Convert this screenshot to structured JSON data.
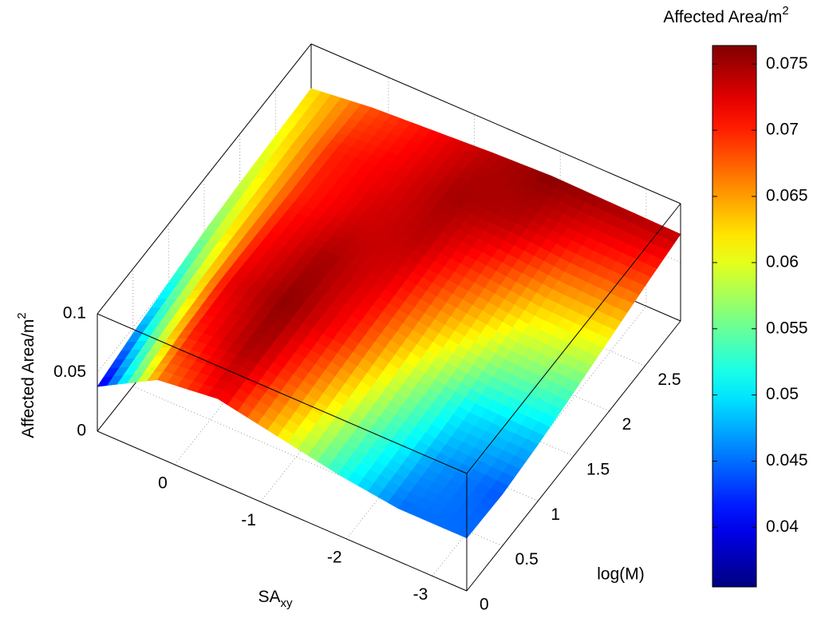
{
  "chart_data": {
    "type": "surface",
    "xlabel": {
      "base": "SA",
      "sub": "xy"
    },
    "ylabel": "log(M)",
    "zlabel": {
      "base": "Affected Area/m",
      "sup": "2"
    },
    "colorbar_title": {
      "base": "Affected Area/m",
      "sup": "2"
    },
    "x": [
      0.9,
      0.2,
      -0.5,
      -1.2,
      -1.9,
      -2.6,
      -3.4
    ],
    "y": [
      0,
      0.5,
      1,
      1.5,
      2,
      2.5,
      3
    ],
    "z": [
      [
        0.038,
        0.066,
        0.072,
        0.062,
        0.052,
        0.045,
        0.045
      ],
      [
        0.045,
        0.07,
        0.075,
        0.066,
        0.055,
        0.047,
        0.044
      ],
      [
        0.05,
        0.072,
        0.076,
        0.07,
        0.059,
        0.05,
        0.048
      ],
      [
        0.055,
        0.071,
        0.075,
        0.072,
        0.064,
        0.057,
        0.054
      ],
      [
        0.058,
        0.07,
        0.073,
        0.074,
        0.069,
        0.063,
        0.061
      ],
      [
        0.06,
        0.07,
        0.072,
        0.075,
        0.074,
        0.07,
        0.068
      ],
      [
        0.062,
        0.068,
        0.071,
        0.074,
        0.076,
        0.075,
        0.074
      ]
    ],
    "xlim": [
      -3.4,
      0.9
    ],
    "xticks": [
      0,
      -1,
      -2,
      -3
    ],
    "ylim": [
      0,
      3
    ],
    "yticks": [
      0,
      0.5,
      1,
      1.5,
      2,
      2.5
    ],
    "zlim": [
      0,
      0.1
    ],
    "zticks": [
      0,
      0.05,
      0.1
    ],
    "clim": [
      0.0355,
      0.0764
    ],
    "cticks": [
      0.04,
      0.045,
      0.05,
      0.055,
      0.06,
      0.065,
      0.07,
      0.075
    ],
    "colormap": "jet",
    "grid": true
  }
}
